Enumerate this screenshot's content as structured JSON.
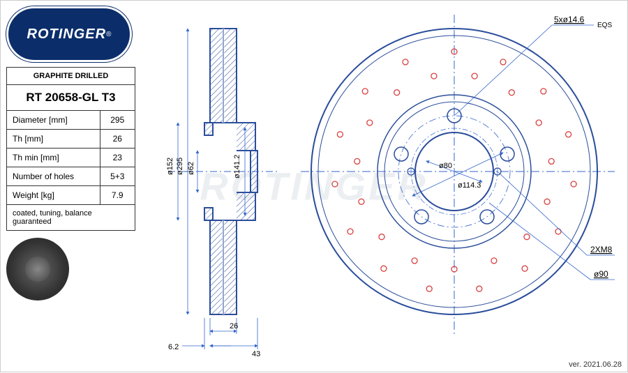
{
  "logo": {
    "brand": "ROTINGER",
    "mark": "®"
  },
  "spec": {
    "title": "GRAPHITE DRILLED",
    "code": "RT 20658-GL T3",
    "rows": [
      {
        "label": "Diameter [mm]",
        "value": "295"
      },
      {
        "label": "Th [mm]",
        "value": "26"
      },
      {
        "label": "Th min [mm]",
        "value": "23"
      },
      {
        "label": "Number of holes",
        "value": "5+3"
      },
      {
        "label": "Weight [kg]",
        "value": "7.9"
      }
    ],
    "note": "coated, tuning, balance guaranteed"
  },
  "side_view": {
    "outer_width": 43,
    "flange_offset": 6.2,
    "disc_thickness": 26,
    "d_outer": "ø295",
    "d_bolt_face": "ø152",
    "d_center": "ø62",
    "d_hub_face": "ø141.2"
  },
  "front_view": {
    "d_hub": "ø80",
    "d_pcd": "ø114.3",
    "d_aux": "ø90",
    "bolt_spec": "5xø14.6",
    "bolt_note": "EQS",
    "aux_thread": "2XM8",
    "drill_count": 30
  },
  "version": "ver. 2021.06.28",
  "colors": {
    "outline": "#2a4d9b",
    "dim": "#3366cc",
    "drill": "#d84040",
    "hatch": "#2a4d9b",
    "text": "#222222"
  }
}
